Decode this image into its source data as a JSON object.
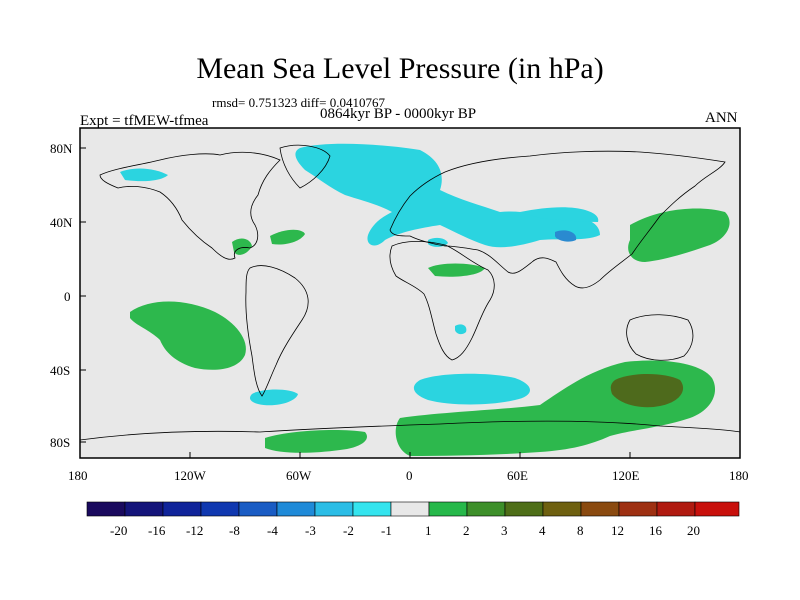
{
  "header": {
    "title": "Mean Sea Level Pressure (in hPa)",
    "stats": "rmsd= 0.751323 diff= 0.0410767",
    "period": "0864kyr BP - 0000kyr BP",
    "experiment": "Expt = tfMEW-tfmea",
    "season": "ANN"
  },
  "axes": {
    "lat_ticks": [
      "80N",
      "40N",
      "0",
      "40S",
      "80S"
    ],
    "lon_ticks": [
      "180",
      "120W",
      "60W",
      "0",
      "60E",
      "120E",
      "180"
    ]
  },
  "colorbar": {
    "labels": [
      "-20",
      "-16",
      "-12",
      "-8",
      "-4",
      "-3",
      "-2",
      "-1",
      "1",
      "2",
      "3",
      "4",
      "8",
      "12",
      "16",
      "20"
    ],
    "colors": [
      "#1a0a5e",
      "#14147a",
      "#10249a",
      "#1038b0",
      "#1a5cc4",
      "#1f8ad8",
      "#2bbde6",
      "#34e4ee",
      "#e8e8e8",
      "#26b84a",
      "#3d8f2a",
      "#4e6e18",
      "#6e6010",
      "#8a4a10",
      "#9e3012",
      "#b01a10",
      "#c8100c"
    ]
  },
  "map": {
    "background_color": "#e8e8e8",
    "positive_color": "#2db84d",
    "strong_positive_color": "#4e6a1c",
    "negative_color": "#2bd4e0",
    "strong_negative_color": "#2a8ad0"
  }
}
